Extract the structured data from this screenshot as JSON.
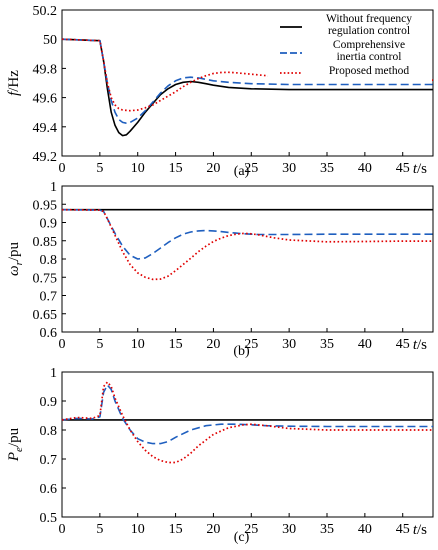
{
  "colors": {
    "black": "#000000",
    "blue": "#1f5fbf",
    "red": "#e00000"
  },
  "chart_data": [
    {
      "type": "line",
      "caption": "(a)",
      "ylabel_main": "f",
      "ylabel_unit": "/Hz",
      "xlabel_main": "t",
      "xlabel_unit": "/s",
      "xlim": [
        0,
        49
      ],
      "ylim": [
        49.2,
        50.2
      ],
      "xticks": [
        0,
        5,
        10,
        15,
        20,
        25,
        30,
        35,
        40,
        45
      ],
      "yticks": [
        49.2,
        49.4,
        49.6,
        49.8,
        50,
        50.2
      ],
      "ytick_labels": [
        "49.2",
        "49.4",
        "49.6",
        "49.8",
        "50",
        "50.2"
      ],
      "legend": {
        "placement": "top-right",
        "entries": [
          {
            "lines": [
              "Without frequency",
              "regulation control"
            ],
            "series": 0
          },
          {
            "lines": [
              "Comprehensive",
              "inertia control"
            ],
            "series": 1
          },
          {
            "lines": [
              "Proposed method"
            ],
            "series": 2
          }
        ]
      },
      "series": [
        {
          "name": "Without frequency regulation control",
          "style": "solid",
          "color": "#000000",
          "x": [
            0,
            5,
            5.5,
            6,
            6.5,
            7,
            7.5,
            8,
            8.5,
            9,
            10,
            11,
            12,
            13,
            14,
            15,
            16,
            17,
            18,
            19,
            20,
            22,
            25,
            30,
            35,
            40,
            45,
            49
          ],
          "y": [
            50.0,
            49.99,
            49.85,
            49.66,
            49.5,
            49.41,
            49.36,
            49.34,
            49.345,
            49.37,
            49.43,
            49.5,
            49.56,
            49.62,
            49.66,
            49.69,
            49.705,
            49.71,
            49.705,
            49.695,
            49.685,
            49.67,
            49.66,
            49.655,
            49.655,
            49.655,
            49.655,
            49.655
          ]
        },
        {
          "name": "Comprehensive inertia control",
          "style": "dash",
          "color": "#1f5fbf",
          "x": [
            0,
            5,
            5.5,
            6,
            6.5,
            7,
            7.5,
            8,
            8.5,
            9,
            10,
            11,
            12,
            13,
            14,
            15,
            16,
            17,
            18,
            19,
            20,
            22,
            25,
            30,
            35,
            40,
            45,
            49
          ],
          "y": [
            50.0,
            49.99,
            49.85,
            49.7,
            49.58,
            49.5,
            49.45,
            49.43,
            49.425,
            49.43,
            49.46,
            49.51,
            49.57,
            49.63,
            49.68,
            49.715,
            49.735,
            49.74,
            49.735,
            49.725,
            49.715,
            49.705,
            49.695,
            49.69,
            49.69,
            49.69,
            49.69,
            49.69
          ]
        },
        {
          "name": "Proposed method",
          "style": "dot",
          "color": "#e00000",
          "x": [
            0,
            5,
            5.5,
            6,
            6.5,
            7,
            7.5,
            8,
            9,
            10,
            11,
            12,
            13,
            14,
            15,
            16,
            17,
            18,
            19,
            20,
            21,
            22,
            23,
            25,
            28,
            30,
            35,
            40,
            45,
            49
          ],
          "y": [
            50.0,
            49.99,
            49.85,
            49.7,
            49.6,
            49.55,
            49.525,
            49.515,
            49.51,
            49.515,
            49.53,
            49.55,
            49.58,
            49.61,
            49.64,
            49.675,
            49.705,
            49.73,
            49.75,
            49.765,
            49.772,
            49.773,
            49.77,
            49.76,
            49.745,
            49.735,
            49.725,
            49.72,
            49.72,
            49.72
          ]
        }
      ]
    },
    {
      "type": "line",
      "caption": "(b)",
      "ylabel_main": "ω",
      "ylabel_sub": "r",
      "ylabel_unit": "/pu",
      "xlabel_main": "t",
      "xlabel_unit": "/s",
      "xlim": [
        0,
        49
      ],
      "ylim": [
        0.6,
        1.0
      ],
      "xticks": [
        0,
        5,
        10,
        15,
        20,
        25,
        30,
        35,
        40,
        45
      ],
      "yticks": [
        0.6,
        0.65,
        0.7,
        0.75,
        0.8,
        0.85,
        0.9,
        0.95,
        1.0
      ],
      "ytick_labels": [
        "0.6",
        "0.65",
        "0.7",
        "0.75",
        "0.8",
        "0.85",
        "0.9",
        "0.95",
        "1"
      ],
      "series": [
        {
          "name": "Without frequency regulation control",
          "style": "solid",
          "color": "#000000",
          "x": [
            0,
            49
          ],
          "y": [
            0.935,
            0.935
          ]
        },
        {
          "name": "Comprehensive inertia control",
          "style": "dash",
          "color": "#1f5fbf",
          "x": [
            0,
            5,
            5.5,
            6,
            7,
            8,
            9,
            10,
            11,
            12,
            13,
            14,
            15,
            16,
            17,
            18,
            19,
            20,
            21,
            22,
            23,
            24,
            25,
            26,
            28,
            30,
            35,
            40,
            45,
            49
          ],
          "y": [
            0.935,
            0.934,
            0.93,
            0.91,
            0.87,
            0.835,
            0.81,
            0.8,
            0.803,
            0.815,
            0.83,
            0.845,
            0.858,
            0.868,
            0.874,
            0.877,
            0.878,
            0.877,
            0.875,
            0.873,
            0.871,
            0.869,
            0.868,
            0.867,
            0.867,
            0.867,
            0.868,
            0.868,
            0.868,
            0.868
          ]
        },
        {
          "name": "Proposed method",
          "style": "dot",
          "color": "#e00000",
          "x": [
            0,
            5,
            5.5,
            6,
            7,
            8,
            9,
            10,
            11,
            12,
            13,
            14,
            15,
            16,
            17,
            18,
            19,
            20,
            21,
            22,
            23,
            24,
            25,
            26,
            28,
            30,
            35,
            40,
            45,
            49
          ],
          "y": [
            0.935,
            0.934,
            0.93,
            0.91,
            0.865,
            0.82,
            0.785,
            0.762,
            0.75,
            0.744,
            0.745,
            0.753,
            0.768,
            0.785,
            0.802,
            0.82,
            0.835,
            0.848,
            0.857,
            0.864,
            0.868,
            0.87,
            0.869,
            0.866,
            0.858,
            0.852,
            0.847,
            0.848,
            0.849,
            0.849
          ]
        }
      ]
    },
    {
      "type": "line",
      "caption": "(c)",
      "ylabel_main": "P",
      "ylabel_sub": "e",
      "ylabel_unit": "/pu",
      "xlabel_main": "t",
      "xlabel_unit": "/s",
      "xlim": [
        0,
        49
      ],
      "ylim": [
        0.5,
        1.0
      ],
      "xticks": [
        0,
        5,
        10,
        15,
        20,
        25,
        30,
        35,
        40,
        45
      ],
      "yticks": [
        0.5,
        0.6,
        0.7,
        0.8,
        0.9,
        1.0
      ],
      "ytick_labels": [
        "0.5",
        "0.6",
        "0.7",
        "0.8",
        "0.9",
        "1"
      ],
      "series": [
        {
          "name": "Without frequency regulation control",
          "style": "solid",
          "color": "#000000",
          "x": [
            0,
            49
          ],
          "y": [
            0.835,
            0.835
          ]
        },
        {
          "name": "Comprehensive inertia control",
          "style": "dash",
          "color": "#1f5fbf",
          "x": [
            0,
            2,
            4,
            5,
            5.5,
            6,
            6.5,
            7,
            8,
            9,
            10,
            11,
            12,
            13,
            14,
            15,
            17,
            19,
            21,
            23,
            25,
            27,
            30,
            35,
            40,
            45,
            49
          ],
          "y": [
            0.835,
            0.84,
            0.838,
            0.845,
            0.93,
            0.955,
            0.94,
            0.9,
            0.84,
            0.8,
            0.77,
            0.758,
            0.753,
            0.753,
            0.76,
            0.775,
            0.8,
            0.815,
            0.82,
            0.82,
            0.818,
            0.815,
            0.813,
            0.812,
            0.812,
            0.812,
            0.812
          ]
        },
        {
          "name": "Proposed method",
          "style": "dot",
          "color": "#e00000",
          "x": [
            0,
            2,
            4,
            5,
            5.5,
            6,
            6.5,
            7,
            8,
            9,
            10,
            11,
            12,
            13,
            14,
            15,
            16,
            17,
            18,
            20,
            22,
            24,
            25,
            27,
            30,
            35,
            40,
            45,
            49
          ],
          "y": [
            0.835,
            0.843,
            0.84,
            0.85,
            0.95,
            0.965,
            0.95,
            0.91,
            0.85,
            0.8,
            0.76,
            0.73,
            0.708,
            0.695,
            0.688,
            0.688,
            0.7,
            0.72,
            0.745,
            0.785,
            0.808,
            0.818,
            0.82,
            0.815,
            0.805,
            0.8,
            0.8,
            0.8,
            0.8
          ]
        }
      ]
    }
  ]
}
